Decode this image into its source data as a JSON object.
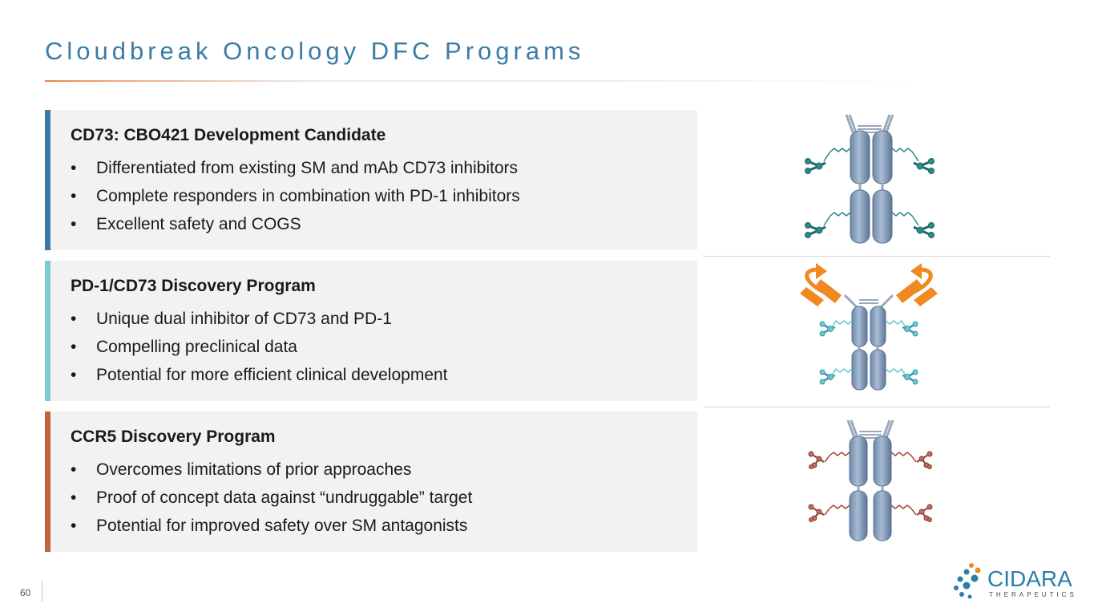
{
  "slide": {
    "title": "Cloudbreak Oncology DFC Programs",
    "page_number": "60"
  },
  "panels": [
    {
      "heading": "CD73: CBO421 Development Candidate",
      "accent_color": "#3a7ca5",
      "bullets": [
        "Differentiated from existing SM and mAb CD73 inhibitors",
        "Complete responders in combination with PD-1 inhibitors",
        "Excellent safety and COGS"
      ]
    },
    {
      "heading": "PD-1/CD73 Discovery Program",
      "accent_color": "#7ecbd6",
      "bullets": [
        "Unique dual inhibitor of CD73 and PD-1",
        "Compelling preclinical data",
        "Potential for more efficient clinical development"
      ]
    },
    {
      "heading": "CCR5 Discovery Program",
      "accent_color": "#c0633a",
      "bullets": [
        "Overcomes limitations of prior approaches",
        "Proof of concept data against “undruggable” target",
        "Potential for improved safety over SM antagonists"
      ]
    }
  ],
  "illustrations": [
    {
      "icon": "antibody-conjugate-teal-icon",
      "payload_color": "#2a8a8c"
    },
    {
      "icon": "antibody-conjugate-pd1-icon",
      "payload_color": "#6cc6d0",
      "arrow_color": "#f0891f"
    },
    {
      "icon": "antibody-conjugate-red-icon",
      "payload_color": "#a84a3f"
    }
  ],
  "logo": {
    "word": "CIDARA",
    "sub": "THERAPEUTICS",
    "color": "#2a7fa8"
  }
}
